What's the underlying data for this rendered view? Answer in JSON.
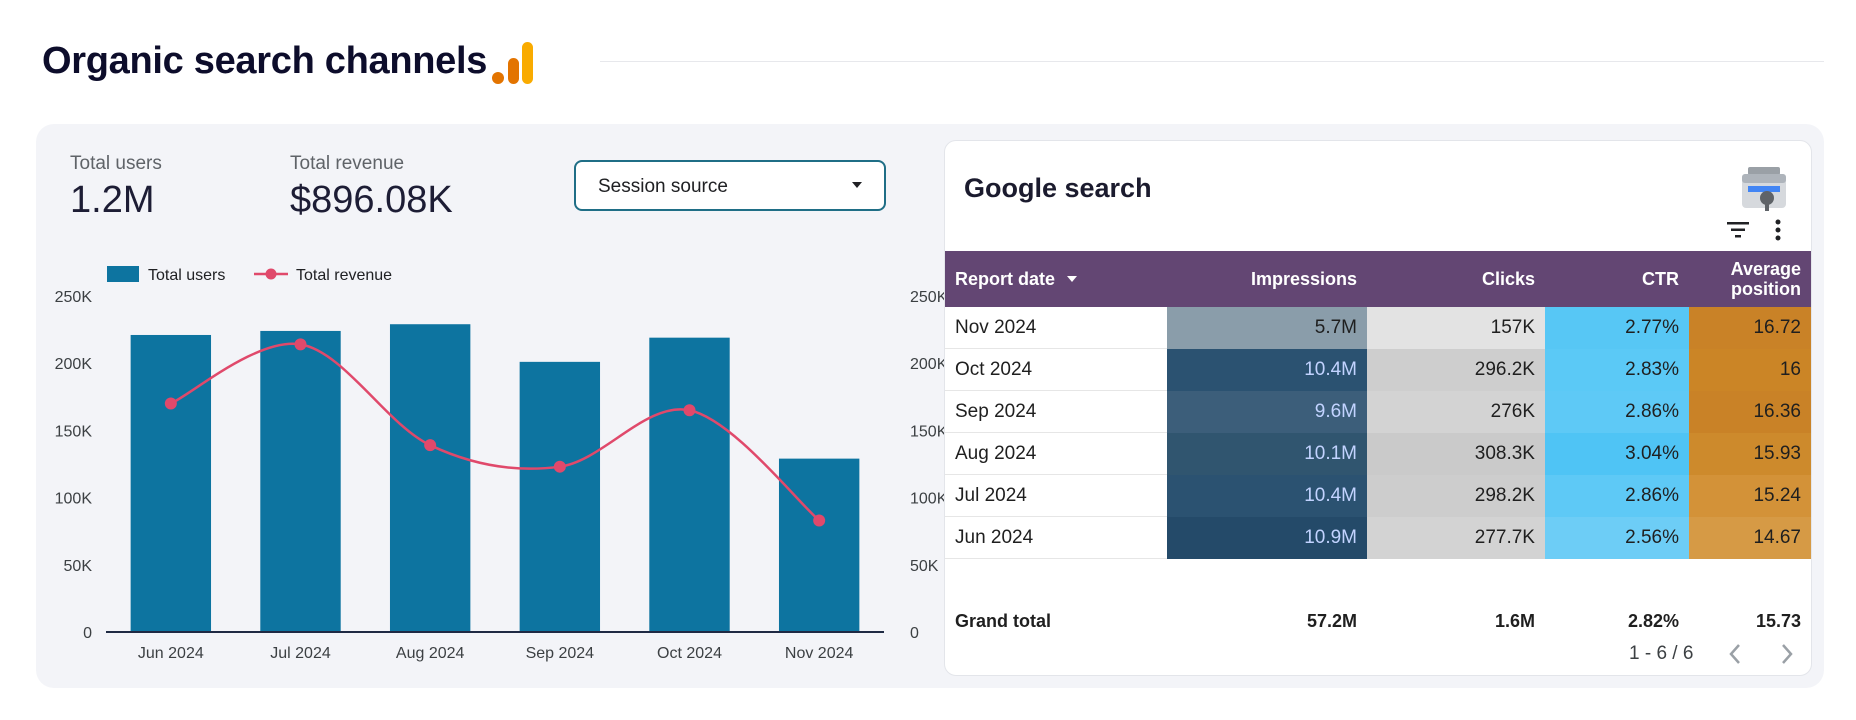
{
  "header": {
    "title": "Organic search channels",
    "logo_icon": "google-analytics-icon"
  },
  "kpis": [
    {
      "label": "Total users",
      "value": "1.2M"
    },
    {
      "label": "Total revenue",
      "value": "$896.08K"
    }
  ],
  "filter": {
    "label": "Session source",
    "icon": "chevron-down-icon"
  },
  "chart_data": {
    "type": "bar",
    "categories": [
      "Jun 2024",
      "Jul 2024",
      "Aug 2024",
      "Sep 2024",
      "Oct 2024",
      "Nov 2024"
    ],
    "series": [
      {
        "name": "Total users",
        "type": "bar",
        "axis": "left",
        "color": "#0d74a0",
        "values": [
          221000,
          224000,
          229000,
          201000,
          219000,
          129000
        ]
      },
      {
        "name": "Total revenue",
        "type": "line",
        "axis": "right",
        "color": "#e0496b",
        "values": [
          170000,
          214000,
          139000,
          123000,
          165000,
          83000
        ]
      }
    ],
    "y_left": {
      "ticks": [
        0,
        50000,
        100000,
        150000,
        200000,
        250000
      ],
      "tick_labels": [
        "0",
        "50K",
        "100K",
        "150K",
        "200K",
        "250K"
      ],
      "ylim": [
        0,
        250000
      ]
    },
    "y_right": {
      "ticks": [
        0,
        50000,
        100000,
        150000,
        200000,
        250000
      ],
      "tick_labels": [
        "0",
        "50K",
        "100K",
        "150K",
        "200K",
        "250K"
      ],
      "ylim": [
        0,
        250000
      ]
    },
    "legend": {
      "position": "top-left"
    },
    "grid": false
  },
  "search_table": {
    "title": "Google search",
    "icons": {
      "brand": "search-console-icon",
      "filter": "filter-icon",
      "menu": "more-vert-icon"
    },
    "columns": [
      "Report date",
      "Impressions",
      "Clicks",
      "CTR",
      "Average position"
    ],
    "sort_column": "Report date",
    "rows": [
      {
        "date": "Nov 2024",
        "impressions": "5.7M",
        "clicks": "157K",
        "ctr": "2.77%",
        "avg_position": "16.72",
        "imp_bg": "#8a9daa",
        "imp_color": "#1f1f1f",
        "clk_bg": "#e3e3e3",
        "ctr_bg": "#57c7f5",
        "pos_bg": "#c98227"
      },
      {
        "date": "Oct 2024",
        "impressions": "10.4M",
        "clicks": "296.2K",
        "ctr": "2.83%",
        "avg_position": "16",
        "imp_bg": "#2b5271",
        "imp_color": "#c2d3ff",
        "clk_bg": "#cecece",
        "ctr_bg": "#5bc9f6",
        "pos_bg": "#cb8526"
      },
      {
        "date": "Sep 2024",
        "impressions": "9.6M",
        "clicks": "276K",
        "ctr": "2.86%",
        "avg_position": "16.36",
        "imp_bg": "#3c5e7a",
        "imp_color": "#c2d3ff",
        "clk_bg": "#d3d3d3",
        "ctr_bg": "#5ec9f6",
        "pos_bg": "#c98227"
      },
      {
        "date": "Aug 2024",
        "impressions": "10.1M",
        "clicks": "308.3K",
        "ctr": "3.04%",
        "avg_position": "15.93",
        "imp_bg": "#30556f",
        "imp_color": "#c2d3ff",
        "clk_bg": "#cacaca",
        "ctr_bg": "#4fc4f5",
        "pos_bg": "#cd8a2c"
      },
      {
        "date": "Jul 2024",
        "impressions": "10.4M",
        "clicks": "298.2K",
        "ctr": "2.86%",
        "avg_position": "15.24",
        "imp_bg": "#2b5271",
        "imp_color": "#c2d3ff",
        "clk_bg": "#cdcdcd",
        "ctr_bg": "#5ec9f6",
        "pos_bg": "#d39238"
      },
      {
        "date": "Jun 2024",
        "impressions": "10.9M",
        "clicks": "277.7K",
        "ctr": "2.56%",
        "avg_position": "14.67",
        "imp_bg": "#244a69",
        "imp_color": "#c2d3ff",
        "clk_bg": "#d3d3d3",
        "ctr_bg": "#6dcdf6",
        "pos_bg": "#d69a45"
      }
    ],
    "grand_total": {
      "label": "Grand total",
      "impressions": "57.2M",
      "clicks": "1.6M",
      "ctr": "2.82%",
      "avg_position": "15.73"
    },
    "pagination": {
      "text": "1 - 6 / 6"
    }
  }
}
